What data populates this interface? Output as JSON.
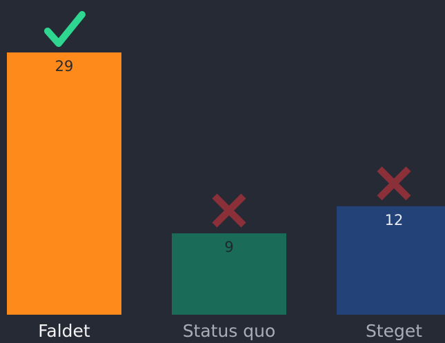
{
  "chart_data": {
    "type": "bar",
    "categories": [
      "Faldet",
      "Status quo",
      "Steget"
    ],
    "values": [
      29,
      9,
      12
    ],
    "colors": [
      "#ff8a1c",
      "#1a6b58",
      "#234277"
    ],
    "label_colors": [
      "#2a2a2a",
      "#1e2a2a",
      "#e8ecf4"
    ],
    "correct": [
      true,
      false,
      false
    ]
  }
}
